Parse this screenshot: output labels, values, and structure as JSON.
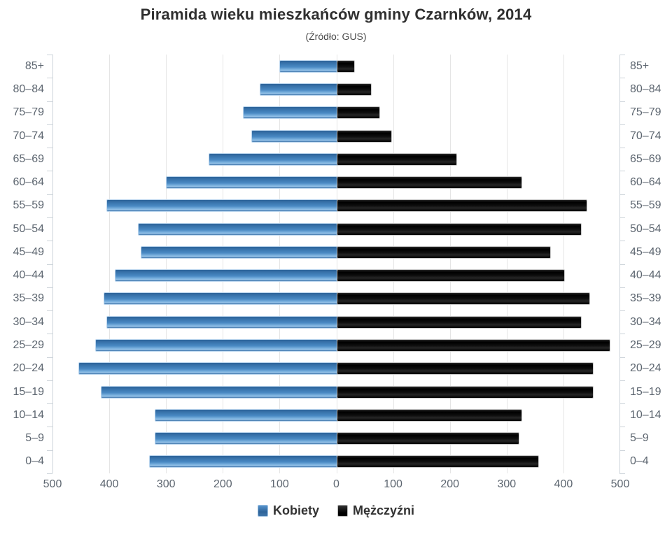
{
  "title": "Piramida wieku mieszkańców gminy Czarnków, 2014",
  "subtitle": "(Źródło: GUS)",
  "legend": {
    "female_label": "Kobiety",
    "male_label": "Mężczyźni"
  },
  "colors": {
    "female": "#3d7ab5",
    "male": "#111111",
    "grid": "#e5e5e5",
    "axis": "#ccd3d9",
    "text": "#5d6670",
    "title_text": "#2f2f2f"
  },
  "axis": {
    "tick_labels": [
      "500",
      "400",
      "300",
      "200",
      "100",
      "0",
      "100",
      "200",
      "300",
      "400",
      "500"
    ],
    "max_per_side": 500,
    "grid": true
  },
  "chart_data": {
    "type": "bar",
    "variant": "population-pyramid",
    "title": "Piramida wieku mieszkańców gminy Czarnków, 2014",
    "subtitle": "(Źródło: GUS)",
    "categories": [
      "85+",
      "80–84",
      "75–79",
      "70–74",
      "65–69",
      "60–64",
      "55–59",
      "50–54",
      "45–49",
      "40–44",
      "35–39",
      "30–34",
      "25–29",
      "20–24",
      "15–19",
      "10–14",
      "5–9",
      "0–4"
    ],
    "series": [
      {
        "name": "Kobiety",
        "side": "left",
        "color": "#3d7ab5",
        "values": [
          100,
          135,
          165,
          150,
          225,
          300,
          405,
          350,
          345,
          390,
          410,
          405,
          425,
          455,
          415,
          320,
          320,
          330
        ]
      },
      {
        "name": "Mężczyźni",
        "side": "right",
        "color": "#111111",
        "values": [
          30,
          60,
          75,
          95,
          210,
          325,
          440,
          430,
          375,
          400,
          445,
          430,
          480,
          450,
          450,
          325,
          320,
          355
        ]
      }
    ],
    "xlim_per_side": [
      0,
      500
    ],
    "grid": true,
    "legend_position": "bottom"
  }
}
